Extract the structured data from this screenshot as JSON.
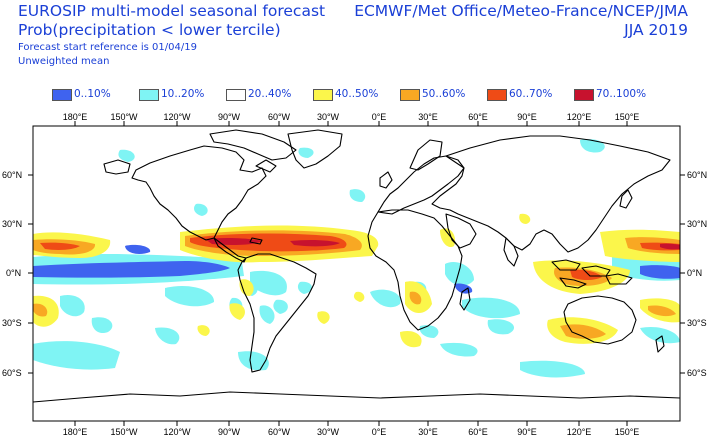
{
  "header": {
    "title_line1": "EUROSIP multi-model seasonal forecast",
    "title_line2": "Prob(precipitation < lower tercile)",
    "forecast_ref": "Forecast start reference is 01/04/19",
    "weighting": "Unweighted mean",
    "source": "ECMWF/Met Office/Meteo-France/NCEP/JMA",
    "season": "JJA 2019"
  },
  "legend": [
    {
      "label": "0..10%",
      "color": "#3f63ef"
    },
    {
      "label": "10..20%",
      "color": "#7ff4f4"
    },
    {
      "label": "20..40%",
      "color": "#ffffff"
    },
    {
      "label": "40..50%",
      "color": "#fbf64b"
    },
    {
      "label": "50..60%",
      "color": "#f8a823"
    },
    {
      "label": "60..70%",
      "color": "#ef4b16"
    },
    {
      "label": "70..100%",
      "color": "#c7122e"
    }
  ],
  "axes": {
    "lon_labels": [
      "180°E",
      "150°W",
      "120°W",
      "90°W",
      "60°W",
      "30°W",
      "0°E",
      "30°E",
      "60°E",
      "90°E",
      "120°E",
      "150°E"
    ],
    "lat_labels": [
      "60°N",
      "30°N",
      "0°N",
      "30°S",
      "60°S"
    ]
  }
}
